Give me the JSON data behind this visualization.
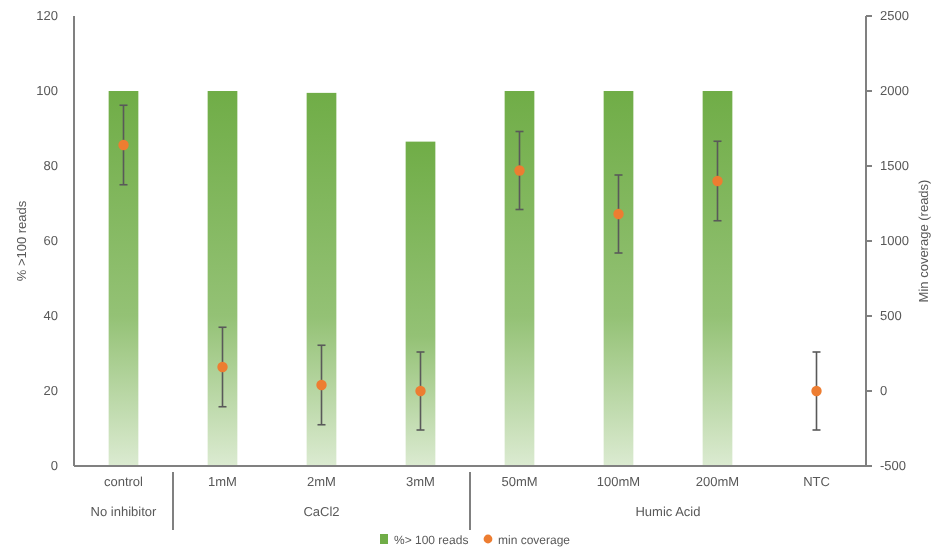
{
  "chart_data": {
    "type": "bar",
    "categories": [
      "control",
      "1mM",
      "2mM",
      "3mM",
      "50mM",
      "100mM",
      "200mM",
      "NTC"
    ],
    "series": [
      {
        "name": "%> 100 reads",
        "color": "#70ad47",
        "values": [
          100,
          100,
          99.5,
          86.5,
          100,
          100,
          100,
          null
        ]
      },
      {
        "name": "min coverage",
        "type": "scatter",
        "axis": "y2",
        "color": "#ed7d31",
        "values": [
          1640,
          160,
          40,
          0,
          1470,
          1180,
          1400,
          0
        ],
        "errors": [
          265,
          265,
          265,
          260,
          260,
          260,
          265,
          260
        ]
      }
    ],
    "ylabel": "% >100 reads",
    "y2label": "Min coverage (reads)",
    "ylim": [
      0,
      120
    ],
    "yticks": [
      0,
      20,
      40,
      60,
      80,
      100,
      120
    ],
    "y2lim": [
      -500,
      2500
    ],
    "y2ticks": [
      -500,
      0,
      500,
      1000,
      1500,
      2000,
      2500
    ],
    "annotations": [
      "No inhibitor",
      "CaCl2",
      "Humic Acid"
    ],
    "grid": false,
    "legend": "bottom",
    "marker": "circle"
  }
}
